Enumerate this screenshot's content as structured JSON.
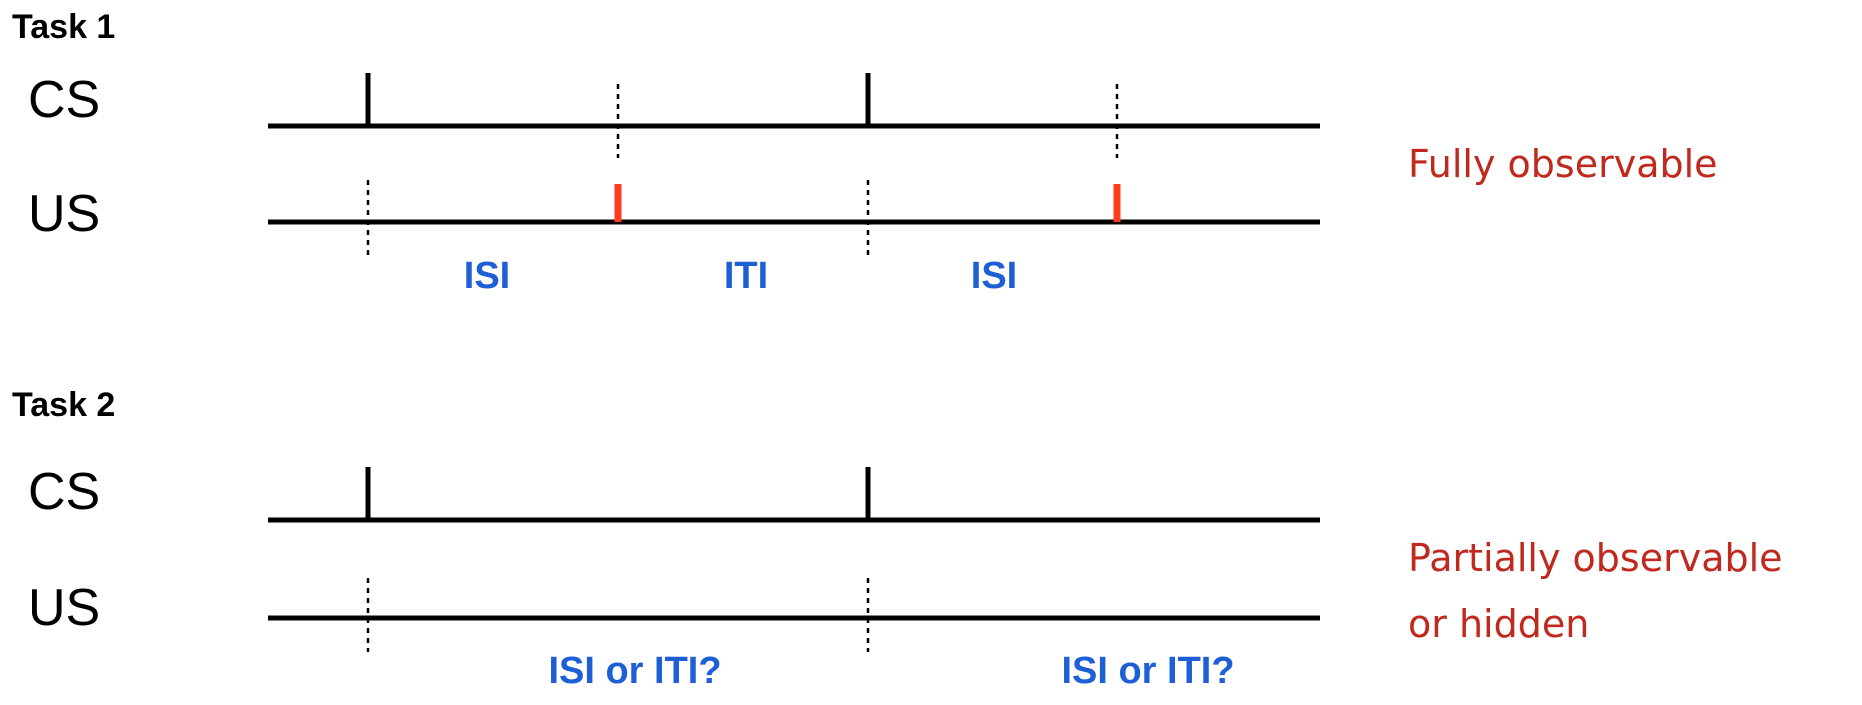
{
  "colors": {
    "line": "#000000",
    "us_marker": "#ff3b1f",
    "period_text": "#1f5fd6",
    "observability_text": "#c0291d"
  },
  "task1": {
    "title": "Task 1",
    "cs_label": "CS",
    "us_label": "US",
    "periods": [
      "ISI",
      "ITI",
      "ISI"
    ],
    "observability": "Fully observable"
  },
  "task2": {
    "title": "Task 2",
    "cs_label": "CS",
    "us_label": "US",
    "periods": [
      "ISI or ITI?",
      "ISI or ITI?"
    ],
    "observability_line1": "Partially observable",
    "observability_line2": "or hidden"
  }
}
